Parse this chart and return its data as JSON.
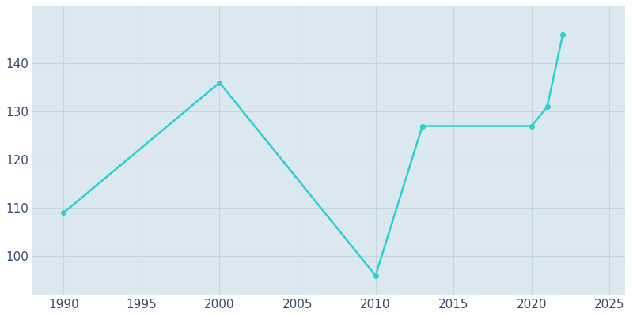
{
  "years": [
    1990,
    2000,
    2010,
    2013,
    2020,
    2021,
    2022
  ],
  "population": [
    109,
    136,
    96,
    127,
    127,
    131,
    146
  ],
  "line_color": "#2dcfcf",
  "bg_color": "#dce8f0",
  "plot_bg_color": "#dce8f0",
  "outer_bg_color": "#ffffff",
  "grid_color": "#c5d5e0",
  "text_color": "#3a4a6b",
  "xlim": [
    1988,
    2026
  ],
  "ylim": [
    92,
    152
  ],
  "xticks": [
    1990,
    1995,
    2000,
    2005,
    2010,
    2015,
    2020,
    2025
  ],
  "yticks": [
    100,
    110,
    120,
    130,
    140
  ],
  "linewidth": 1.8,
  "marker": "o",
  "markersize": 4,
  "figsize": [
    8.0,
    4.0
  ],
  "dpi": 100
}
